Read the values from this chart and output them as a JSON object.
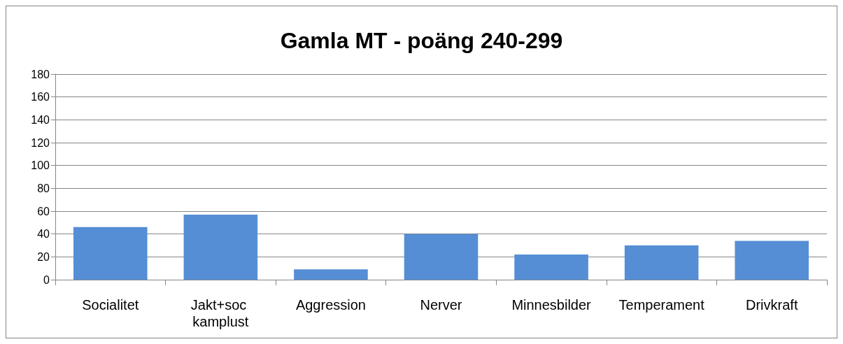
{
  "chart_data": {
    "type": "bar",
    "title": "Gamla MT - poäng 240-299",
    "categories": [
      "Socialitet",
      "Jakt+soc kamplust",
      "Aggression",
      "Nerver",
      "Minnesbilder",
      "Temperament",
      "Drivkraft"
    ],
    "values": [
      46,
      57,
      9,
      40,
      22,
      30,
      34
    ],
    "color": "#558ed5",
    "ylim": [
      0,
      180
    ],
    "yticks": [
      0,
      20,
      40,
      60,
      80,
      100,
      120,
      140,
      160,
      180
    ],
    "grid": "y"
  }
}
